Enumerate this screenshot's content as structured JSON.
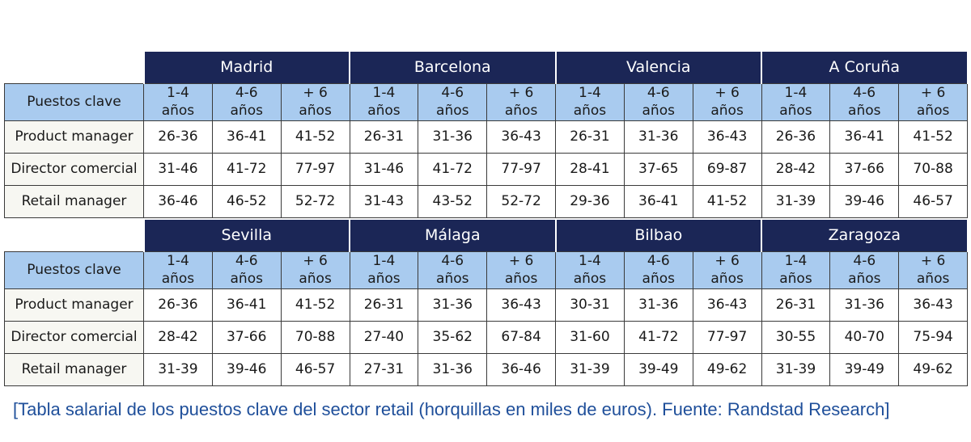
{
  "years_label": "años",
  "tables": [
    {
      "cities": [
        "Madrid",
        "Barcelona",
        "Valencia",
        "A Coruña"
      ],
      "header_label": "Puestos clave",
      "ranges": [
        "1-4",
        "4-6",
        "+ 6"
      ],
      "rows": [
        {
          "label": "Product manager",
          "values": [
            "26-36",
            "36-41",
            "41-52",
            "26-31",
            "31-36",
            "36-43",
            "26-31",
            "31-36",
            "36-43",
            "26-36",
            "36-41",
            "41-52"
          ]
        },
        {
          "label": "Director comercial",
          "values": [
            "31-46",
            "41-72",
            "77-97",
            "31-46",
            "41-72",
            "77-97",
            "28-41",
            "37-65",
            "69-87",
            "28-42",
            "37-66",
            "70-88"
          ]
        },
        {
          "label": "Retail manager",
          "values": [
            "36-46",
            "46-52",
            "52-72",
            "31-43",
            "43-52",
            "52-72",
            "29-36",
            "36-41",
            "41-52",
            "31-39",
            "39-46",
            "46-57"
          ]
        }
      ]
    },
    {
      "cities": [
        "Sevilla",
        "Málaga",
        "Bilbao",
        "Zaragoza"
      ],
      "header_label": "Puestos clave",
      "ranges": [
        "1-4",
        "4-6",
        "+ 6"
      ],
      "rows": [
        {
          "label": "Product manager",
          "values": [
            "26-36",
            "36-41",
            "41-52",
            "26-31",
            "31-36",
            "36-43",
            "30-31",
            "31-36",
            "36-43",
            "26-31",
            "31-36",
            "36-43"
          ]
        },
        {
          "label": "Director comercial",
          "values": [
            "28-42",
            "37-66",
            "70-88",
            "27-40",
            "35-62",
            "67-84",
            "31-60",
            "41-72",
            "77-97",
            "30-55",
            "40-70",
            "75-94"
          ]
        },
        {
          "label": "Retail manager",
          "values": [
            "31-39",
            "39-46",
            "46-57",
            "27-31",
            "31-36",
            "36-46",
            "31-39",
            "39-49",
            "49-62",
            "31-39",
            "39-49",
            "49-62"
          ]
        }
      ]
    }
  ],
  "caption": "[Tabla salarial de los puestos clave del sector retail (horquillas en miles de euros). Fuente: Randstad Research]",
  "colors": {
    "city_header_bg": "#1b2656",
    "column_header_bg": "#a9cbef",
    "caption_text": "#1f4f9a"
  }
}
